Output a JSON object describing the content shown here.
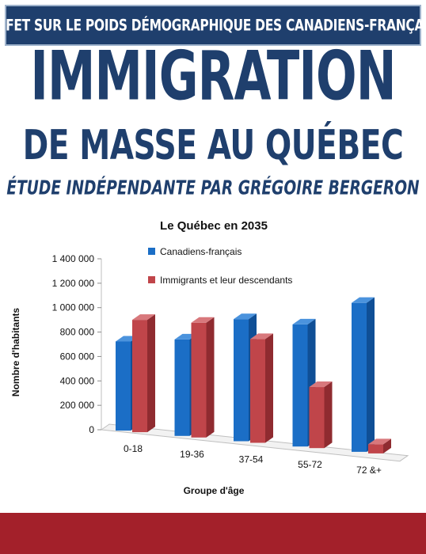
{
  "banner": {
    "text": "EFFET SUR LE POIDS DÉMOGRAPHIQUE DES CANADIENS-FRANÇAIS"
  },
  "title": {
    "line1": "IMMIGRATION",
    "line2": "DE MASSE AU QUÉBEC",
    "line3": "ÉTUDE INDÉPENDANTE PAR GRÉGOIRE BERGERON"
  },
  "colors": {
    "brand_blue": "#1f3f6d",
    "series_blue": "#1b6ec6",
    "series_red": "#c0454a",
    "bottom_bar": "#a3202a"
  },
  "chart_data": {
    "type": "bar",
    "title": "Le Québec en 2035",
    "xlabel": "Groupe d'âge",
    "ylabel": "Nombre d'habitants",
    "ylim": [
      0,
      1400000
    ],
    "yticks": [
      "0",
      "200 000",
      "400 000",
      "600 000",
      "800 000",
      "1 000 000",
      "1 200 000",
      "1 400 000"
    ],
    "categories": [
      "0-18",
      "19-36",
      "37-54",
      "55-72",
      "72 &+"
    ],
    "series": [
      {
        "name": "Canadiens-français",
        "values": [
          730000,
          790000,
          1000000,
          1000000,
          1220000
        ]
      },
      {
        "name": "Immigrants et leur descendants",
        "values": [
          920000,
          940000,
          850000,
          500000,
          75000
        ]
      }
    ],
    "legend": "top-right",
    "grid": false
  }
}
